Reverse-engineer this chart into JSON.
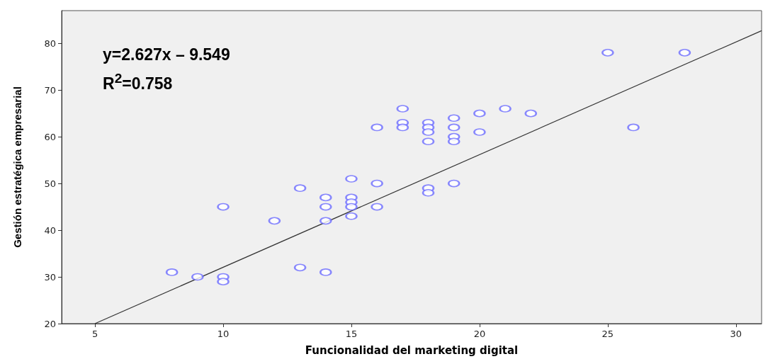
{
  "chart_data": {
    "type": "scatter",
    "xlabel": "Funcionalidad del marketing digital",
    "ylabel": "Gestión estratégica empresarial",
    "annotations": [
      "y=2.627x – 9.549",
      "R$^{2}$=0.758"
    ],
    "xlim": [
      3.7,
      31
    ],
    "xticks": [
      5,
      10,
      15,
      20,
      25,
      30
    ],
    "ylim": [
      20,
      87
    ],
    "yticks": [
      20,
      30,
      40,
      50,
      60,
      70,
      80
    ],
    "grid": false,
    "marker": "circle",
    "series": [
      {
        "color": "#6b6bff",
        "x": [
          8,
          9,
          10,
          10,
          10,
          12,
          13,
          13,
          14,
          14,
          14,
          14,
          15,
          15,
          15,
          15,
          15,
          16,
          16,
          16,
          17,
          17,
          17,
          18,
          18,
          18,
          18,
          18,
          18,
          19,
          19,
          19,
          19,
          19,
          20,
          20,
          21,
          22,
          25,
          26,
          28
        ],
        "values": [
          31,
          30,
          45,
          30,
          29,
          42,
          49,
          32,
          47,
          45,
          42,
          31,
          51,
          47,
          46,
          45,
          43,
          62,
          50,
          45,
          66,
          63,
          62,
          63,
          62,
          61,
          59,
          49,
          48,
          64,
          62,
          60,
          59,
          50,
          65,
          61,
          66,
          65,
          78,
          62,
          78
        ]
      },
      {
        "type": "line",
        "color": "#333333",
        "marker": "none",
        "x": [
          5,
          31
        ],
        "values": [
          20,
          82.7
        ]
      }
    ]
  }
}
